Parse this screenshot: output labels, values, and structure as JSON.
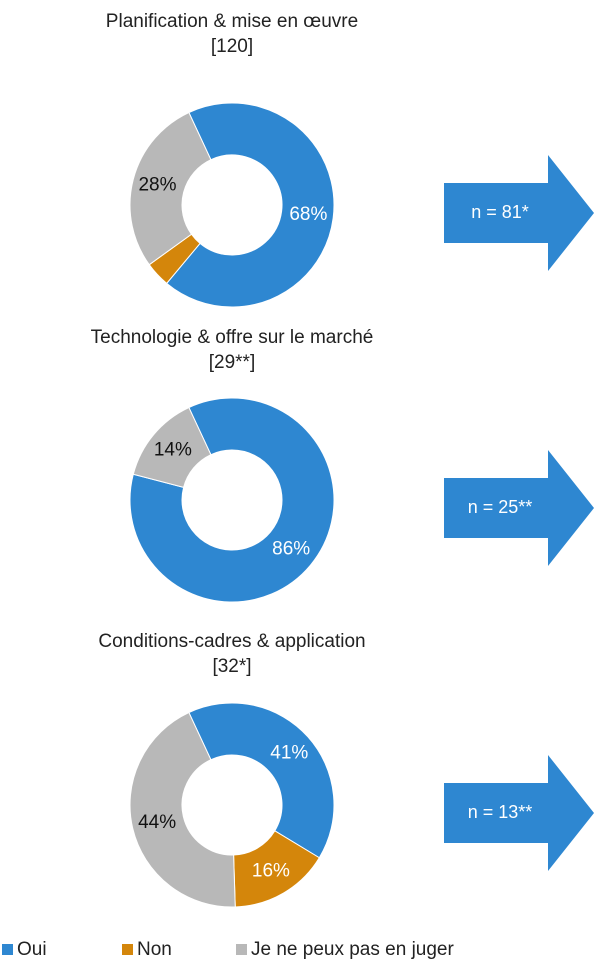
{
  "chart_data": [
    {
      "type": "pie",
      "title": "Planification & mise en œuvre",
      "subtitle": "[120]",
      "categories": [
        "Oui",
        "Non",
        "Je ne peux pas en juger"
      ],
      "values": [
        68,
        4,
        28
      ],
      "value_labels": [
        "68%",
        null,
        "28%"
      ],
      "colors": [
        "#2e87d1",
        "#d4860b",
        "#b8b8b8"
      ],
      "annotation": "n = 81*"
    },
    {
      "type": "pie",
      "title": "Technologie & offre sur le marché",
      "subtitle": "[29**]",
      "categories": [
        "Oui",
        "Non",
        "Je ne peux pas en juger"
      ],
      "values": [
        86,
        0,
        14
      ],
      "value_labels": [
        "86%",
        null,
        "14%"
      ],
      "colors": [
        "#2e87d1",
        "#d4860b",
        "#b8b8b8"
      ],
      "annotation": "n = 25**"
    },
    {
      "type": "pie",
      "title": "Conditions-cadres & application",
      "subtitle": "[32*]",
      "categories": [
        "Oui",
        "Non",
        "Je ne peux pas en juger"
      ],
      "values": [
        41,
        16,
        44
      ],
      "value_labels": [
        "41%",
        "16%",
        "44%"
      ],
      "colors": [
        "#2e87d1",
        "#d4860b",
        "#b8b8b8"
      ],
      "annotation": "n = 13**"
    }
  ]
}
